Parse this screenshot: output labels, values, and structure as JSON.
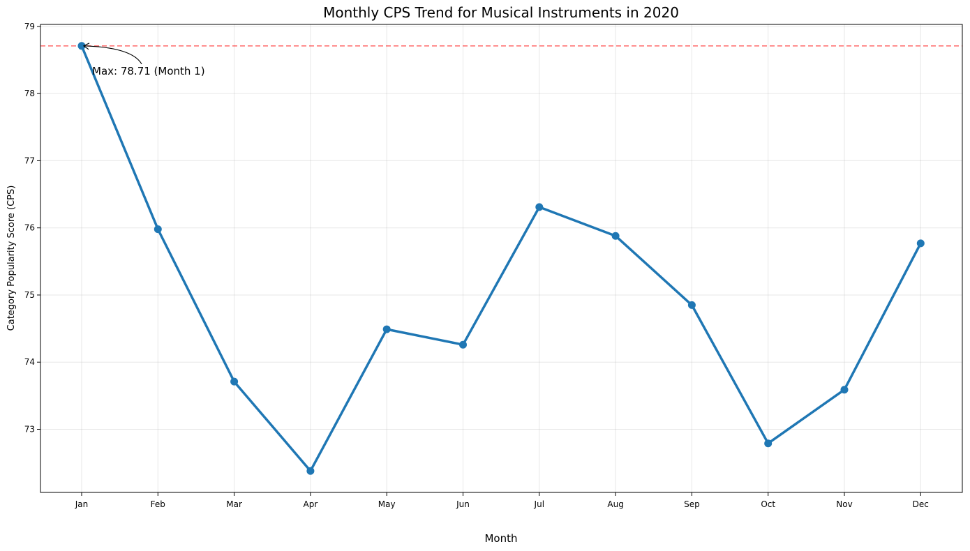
{
  "chart_data": {
    "type": "line",
    "title": "Monthly CPS Trend for Musical Instruments in 2020",
    "xlabel": "Month",
    "ylabel": "Category Popularity Score (CPS)",
    "categories": [
      "Jan",
      "Feb",
      "Mar",
      "Apr",
      "May",
      "Jun",
      "Jul",
      "Aug",
      "Sep",
      "Oct",
      "Nov",
      "Dec"
    ],
    "series": [
      {
        "values": [
          78.71,
          75.98,
          73.71,
          72.38,
          74.49,
          74.26,
          76.31,
          75.88,
          74.85,
          72.79,
          73.59,
          75.77
        ],
        "color": "#1f77b4"
      }
    ],
    "ylim": [
      72.06,
      79.03
    ],
    "yticks": [
      73,
      74,
      75,
      76,
      77,
      78,
      79
    ],
    "grid": true,
    "reference_line": {
      "value": 78.71,
      "color": "#ff0000",
      "style": "dashed"
    },
    "annotation": {
      "text": "Max: 78.71 (Month 1)",
      "category_index": 0,
      "value": 78.71
    }
  }
}
